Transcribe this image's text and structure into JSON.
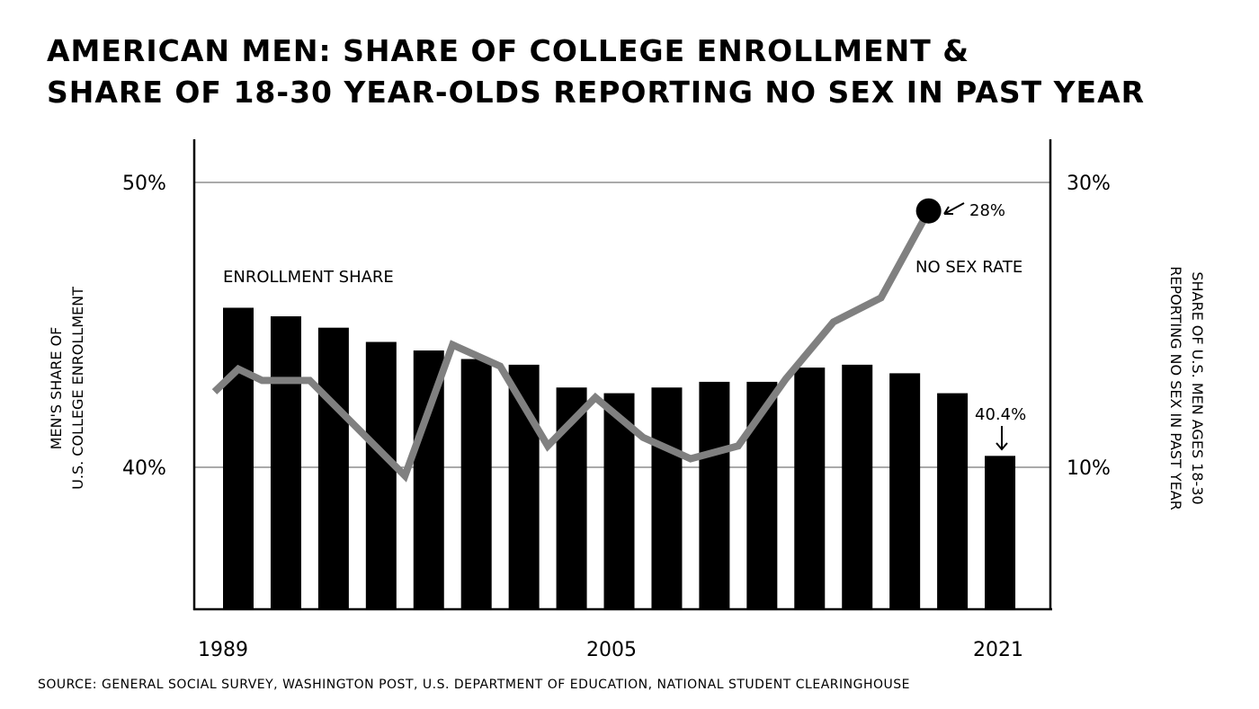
{
  "chart_data": {
    "type": "bar+line",
    "title_lines": [
      "American men: share of college enrollment &",
      "share of 18-30 year-olds reporting no sex in past year"
    ],
    "ylabel_left": [
      "Men's share of",
      "U.S. college enrollment"
    ],
    "ylabel_right": [
      "Share of U.S. men ages 18-30",
      "reporting no sex in past year"
    ],
    "x_ticks": [
      "1989",
      "2005",
      "2021"
    ],
    "y_left_ticks": [
      "40%",
      "50%"
    ],
    "y_right_ticks": [
      "10%",
      "30%"
    ],
    "y_left_lim": [
      35,
      51.5
    ],
    "y_right_lim": [
      0,
      33
    ],
    "grid": "horizontal at labeled ticks",
    "series": [
      {
        "name": "Enrollment share",
        "type": "bar",
        "color": "#000000",
        "x": [
          1989,
          1991,
          1993,
          1995,
          1997,
          1999,
          2001,
          2003,
          2005,
          2007,
          2009,
          2011,
          2013,
          2015,
          2017,
          2019,
          2021
        ],
        "values": [
          45.6,
          45.3,
          44.9,
          44.4,
          44.1,
          43.8,
          43.6,
          42.8,
          42.6,
          42.8,
          43.0,
          43.0,
          43.5,
          43.6,
          43.3,
          42.6,
          40.4
        ]
      },
      {
        "name": "No sex rate",
        "type": "line",
        "axis": "right",
        "color": "#808080",
        "x": [
          1988,
          1989,
          1990,
          1992,
          1996,
          1998,
          2000,
          2002,
          2004,
          2006,
          2008,
          2010,
          2012,
          2014,
          2016,
          2018
        ],
        "values": [
          15.3,
          16.9,
          16.1,
          16.1,
          9.4,
          18.6,
          17.1,
          11.5,
          14.9,
          12.1,
          10.6,
          11.5,
          16.2,
          20.2,
          21.9,
          28
        ]
      }
    ],
    "annotations": {
      "enrollment_label": "Enrollment share",
      "line_label": "No sex rate",
      "last_line_value": "28%",
      "last_bar_value": "40.4%"
    },
    "source": "Source: General Social Survey, Washington Post, U.S. Department of Education, National Student Clearinghouse"
  }
}
